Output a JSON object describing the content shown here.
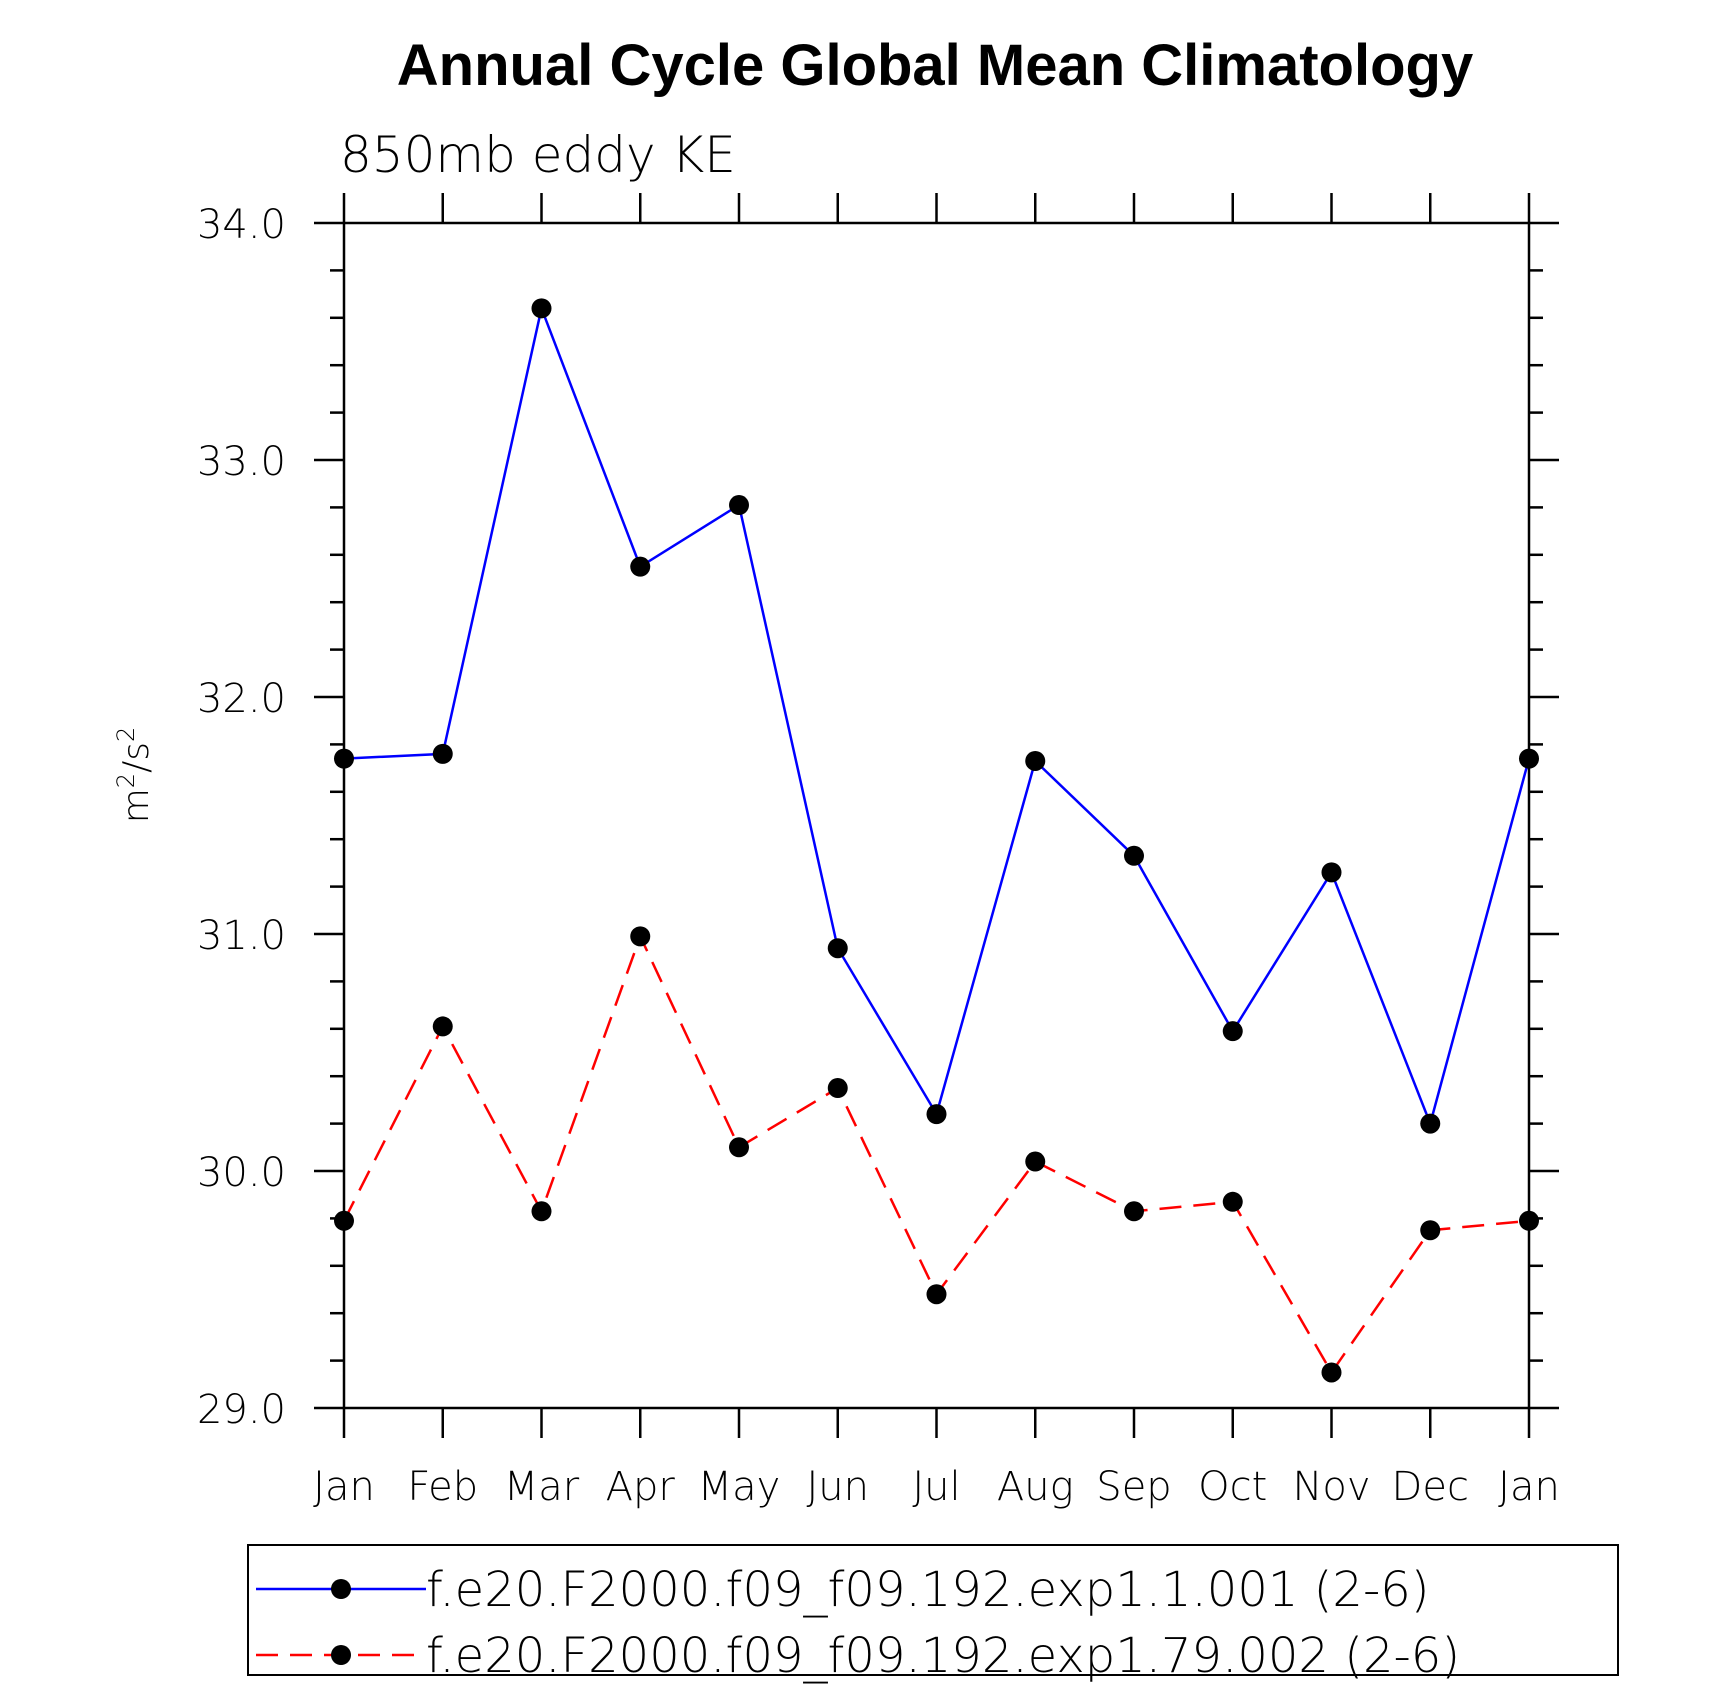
{
  "chart_data": {
    "type": "line",
    "title": "Annual Cycle Global Mean Climatology",
    "subtitle": "850mb eddy KE",
    "xlabel": "",
    "ylabel_base": "m",
    "ylabel_sup": "2",
    "ylabel_mid": "/s",
    "ylabel_sup2": "2",
    "ylim": [
      29.0,
      34.0
    ],
    "y_ticks": [
      "29.0",
      "30.0",
      "31.0",
      "32.0",
      "33.0",
      "34.0"
    ],
    "categories": [
      "Jan",
      "Feb",
      "Mar",
      "Apr",
      "May",
      "Jun",
      "Jul",
      "Aug",
      "Sep",
      "Oct",
      "Nov",
      "Dec",
      "Jan"
    ],
    "series": [
      {
        "name": "f.e20.F2000.f09_f09.192.exp1.1.001 (2-6)",
        "color": "#0000ff",
        "dash": "solid",
        "values": [
          31.74,
          31.76,
          33.64,
          32.55,
          32.81,
          30.94,
          30.24,
          31.73,
          31.33,
          30.59,
          31.26,
          30.2,
          31.74
        ]
      },
      {
        "name": "f.e20.F2000.f09_f09.192.exp1.79.002 (2-6)",
        "color": "#ff0000",
        "dash": "dashed",
        "values": [
          29.79,
          30.61,
          29.83,
          30.99,
          30.1,
          30.35,
          29.48,
          30.04,
          29.83,
          29.87,
          29.15,
          29.75,
          29.79
        ]
      }
    ],
    "marker": "filled-circle",
    "legend_position": "bottom"
  }
}
